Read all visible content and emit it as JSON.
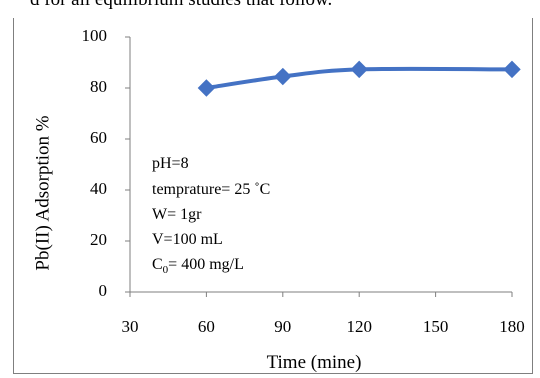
{
  "caption": "d for all equilibrium studies that follow.",
  "chart_data": {
    "type": "line",
    "title": "",
    "xlabel": "Time (mine)",
    "ylabel": "Pb(II) Adsorption %",
    "xlim": [
      30,
      180
    ],
    "ylim": [
      0,
      100
    ],
    "x_ticks": [
      "30",
      "60",
      "90",
      "120",
      "150",
      "180"
    ],
    "y_ticks": [
      "0",
      "20",
      "40",
      "60",
      "80",
      "100"
    ],
    "grid": false,
    "series": [
      {
        "x": [
          60,
          90,
          120,
          180
        ],
        "y": [
          80,
          84.5,
          87.3,
          87.3
        ],
        "color": "#4472c4",
        "marker": "diamond"
      }
    ],
    "annotation": {
      "lines": [
        "pH=8",
        "temprature= 25 ˚C",
        "W= 1gr",
        "V=100 mL"
      ],
      "c0_symbol": "C",
      "c0_subscript": "0",
      "c0_value": "= 400 mg/L"
    }
  }
}
